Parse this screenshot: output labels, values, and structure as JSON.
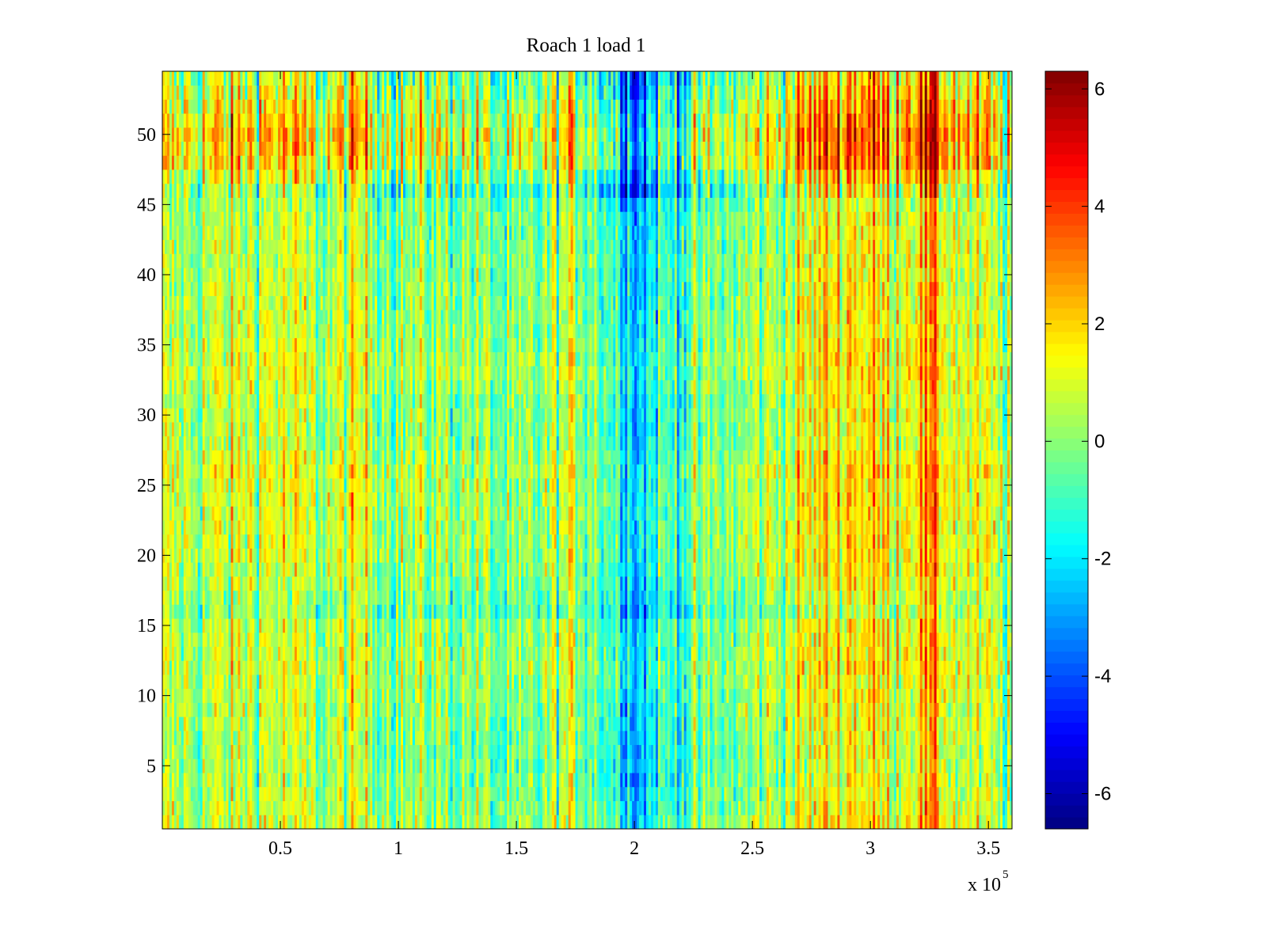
{
  "chart_data": {
    "type": "heatmap",
    "title": "Roach 1 load 1",
    "xlabel": "",
    "ylabel": "",
    "x_exponent": {
      "base": "x 10",
      "power": "5"
    },
    "xlim": [
      0,
      3.6
    ],
    "ylim": [
      0.5,
      54.5
    ],
    "x_ticks": [
      0.5,
      1,
      1.5,
      2,
      2.5,
      3,
      3.5
    ],
    "x_tick_labels": [
      "0.5",
      "1",
      "1.5",
      "2",
      "2.5",
      "3",
      "3.5"
    ],
    "y_ticks": [
      5,
      10,
      15,
      20,
      25,
      30,
      35,
      40,
      45,
      50
    ],
    "y_tick_labels": [
      "5",
      "10",
      "15",
      "20",
      "25",
      "30",
      "35",
      "40",
      "45",
      "50"
    ],
    "rows": 54,
    "colormap": "jet",
    "colorbar": {
      "clim": [
        -6.6,
        6.3
      ],
      "ticks": [
        -6,
        -4,
        -2,
        0,
        2,
        4,
        6
      ],
      "tick_labels": [
        "-6",
        "-4",
        "-2",
        "0",
        "2",
        "4",
        "6"
      ]
    },
    "column_trend": {
      "x": [
        0,
        0.2,
        0.5,
        0.65,
        0.85,
        1.0,
        1.3,
        1.5,
        1.75,
        1.95,
        2.02,
        2.1,
        2.3,
        2.55,
        2.75,
        2.9,
        3.1,
        3.25,
        3.35,
        3.6
      ],
      "value": [
        0.2,
        0.4,
        0.9,
        0.1,
        0.8,
        0.0,
        0.0,
        -0.9,
        0.6,
        -1.3,
        -2.6,
        -1.2,
        -0.6,
        0.2,
        1.2,
        1.9,
        1.3,
        2.3,
        1.1,
        0.0
      ]
    },
    "row_trend": {
      "y": [
        1,
        5,
        8,
        12,
        15,
        16,
        18,
        20,
        25,
        26,
        28,
        31,
        33,
        36,
        40,
        44,
        46,
        48,
        50,
        52,
        54
      ],
      "value": [
        0.2,
        -0.3,
        -0.1,
        0.3,
        0.1,
        -0.6,
        0.0,
        0.3,
        0.4,
        0.6,
        0.0,
        0.0,
        0.5,
        0.1,
        0.0,
        -0.1,
        -0.7,
        0.9,
        1.2,
        0.5,
        -0.2
      ]
    }
  }
}
